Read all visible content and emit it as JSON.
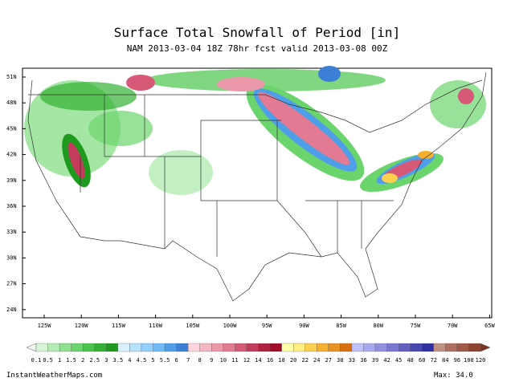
{
  "header": {
    "title": "Surface Total Snowfall of Period [in]",
    "subtitle": "NAM 2013-03-04 18Z 78hr fcst valid 2013-03-08 00Z"
  },
  "map": {
    "lat_labels": [
      "51N",
      "48N",
      "45N",
      "42N",
      "39N",
      "36N",
      "33N",
      "30N",
      "27N",
      "24N"
    ],
    "lon_labels": [
      "125W",
      "120W",
      "115W",
      "110W",
      "105W",
      "100W",
      "95W",
      "90W",
      "85W",
      "80W",
      "75W",
      "70W",
      "65W"
    ]
  },
  "colorbar": {
    "labels": [
      "0.1",
      "0.5",
      "1",
      "1.5",
      "2",
      "2.5",
      "3",
      "3.5",
      "4",
      "4.5",
      "5",
      "5.5",
      "6",
      "7",
      "8",
      "9",
      "10",
      "11",
      "12",
      "14",
      "16",
      "18",
      "20",
      "22",
      "24",
      "27",
      "30",
      "33",
      "36",
      "39",
      "42",
      "45",
      "48",
      "60",
      "72",
      "84",
      "96",
      "108",
      "120"
    ],
    "colors": [
      "#d6f5d6",
      "#b4ecb4",
      "#8fe08f",
      "#6cd46c",
      "#4cc44c",
      "#33b033",
      "#1e9a1e",
      "#d8f0ff",
      "#b8e2ff",
      "#94d0ff",
      "#6fbaf7",
      "#4f9fe8",
      "#3b80d6",
      "#ffd6e0",
      "#f5b6c4",
      "#ec98ab",
      "#e27a93",
      "#d65a78",
      "#c43c5c",
      "#b02040",
      "#a00b28",
      "#ffffa8",
      "#ffee80",
      "#ffd050",
      "#f5b030",
      "#e89020",
      "#d87010",
      "#c0c0ff",
      "#a8a8f0",
      "#9090e0",
      "#7878d0",
      "#6060c0",
      "#4848b0",
      "#3030a0",
      "#c09080",
      "#b07060",
      "#a05848",
      "#8c4430"
    ]
  },
  "footer": {
    "source": "InstantWeatherMaps.com",
    "max": "Max: 34.0"
  }
}
